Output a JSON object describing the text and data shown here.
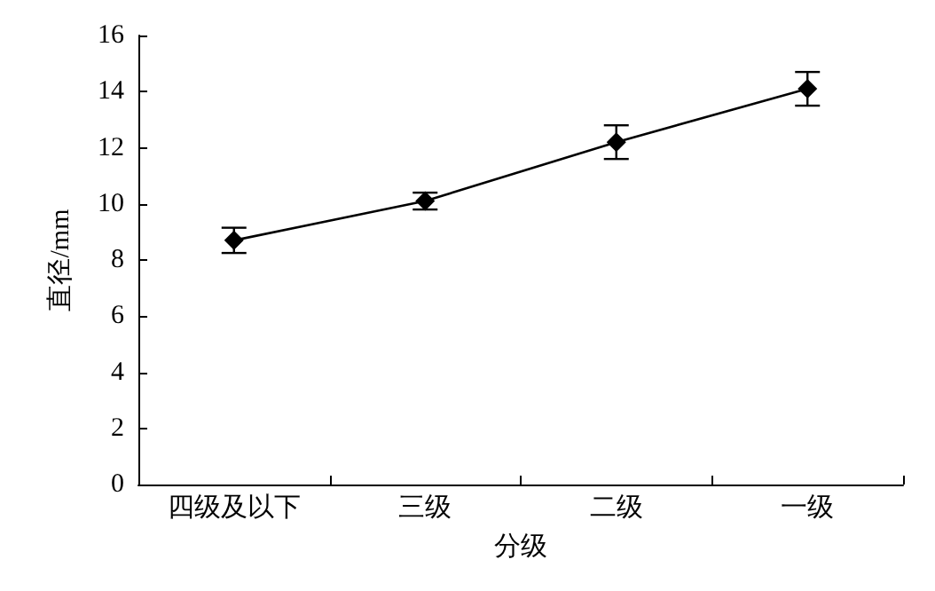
{
  "chart_data": {
    "type": "line",
    "xlabel": "分级",
    "ylabel": "直径/mm",
    "categories": [
      "四级及以下",
      "三级",
      "二级",
      "一级"
    ],
    "series": [
      {
        "color": "#000000",
        "values": [
          8.7,
          10.1,
          12.2,
          14.1
        ],
        "errors": [
          0.45,
          0.3,
          0.6,
          0.6
        ]
      }
    ],
    "ylim": [
      0,
      16
    ],
    "yticks": [
      0,
      2,
      4,
      6,
      8,
      10,
      12,
      14,
      16
    ],
    "grid": false,
    "marker": "diamond",
    "line_style": "solid"
  }
}
